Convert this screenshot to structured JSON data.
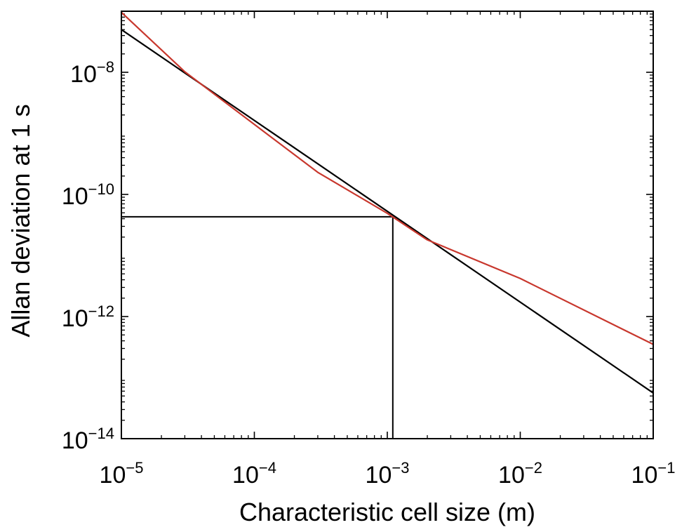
{
  "chart_data": {
    "type": "line",
    "xlabel": "Characteristic cell size (m)",
    "ylabel": "Allan deviation at 1 s",
    "x_scale": "log",
    "y_scale": "log",
    "xlim": [
      1e-05,
      0.1
    ],
    "ylim": [
      1e-14,
      1e-07
    ],
    "x_ticks": [
      {
        "value": 1e-05,
        "base": "10",
        "exp": "−5"
      },
      {
        "value": 0.0001,
        "base": "10",
        "exp": "−4"
      },
      {
        "value": 0.001,
        "base": "10",
        "exp": "−3"
      },
      {
        "value": 0.01,
        "base": "10",
        "exp": "−2"
      },
      {
        "value": 0.1,
        "base": "10",
        "exp": "−1"
      }
    ],
    "y_ticks": [
      {
        "value": 1e-14,
        "base": "10",
        "exp": "−14"
      },
      {
        "value": 1e-12,
        "base": "10",
        "exp": "−12"
      },
      {
        "value": 1e-10,
        "base": "10",
        "exp": "−10"
      },
      {
        "value": 1e-08,
        "base": "10",
        "exp": "−8"
      }
    ],
    "grid": false,
    "series": [
      {
        "color": "#000000",
        "x": [
          1e-05,
          0.1
        ],
        "y": [
          5e-08,
          5.6e-14
        ]
      },
      {
        "color": "#c8372d",
        "x": [
          1e-05,
          3e-05,
          0.0001,
          0.0003,
          0.001,
          0.002,
          0.01,
          0.1
        ],
        "y": [
          9.6e-08,
          1.02e-08,
          1.4e-09,
          2.3e-10,
          4.9e-11,
          1.8e-11,
          4.2e-12,
          3.5e-13
        ]
      }
    ],
    "annotations": [
      {
        "type": "crosshair",
        "x": 0.0011,
        "y": 4.3e-11,
        "color": "#000000"
      }
    ]
  }
}
